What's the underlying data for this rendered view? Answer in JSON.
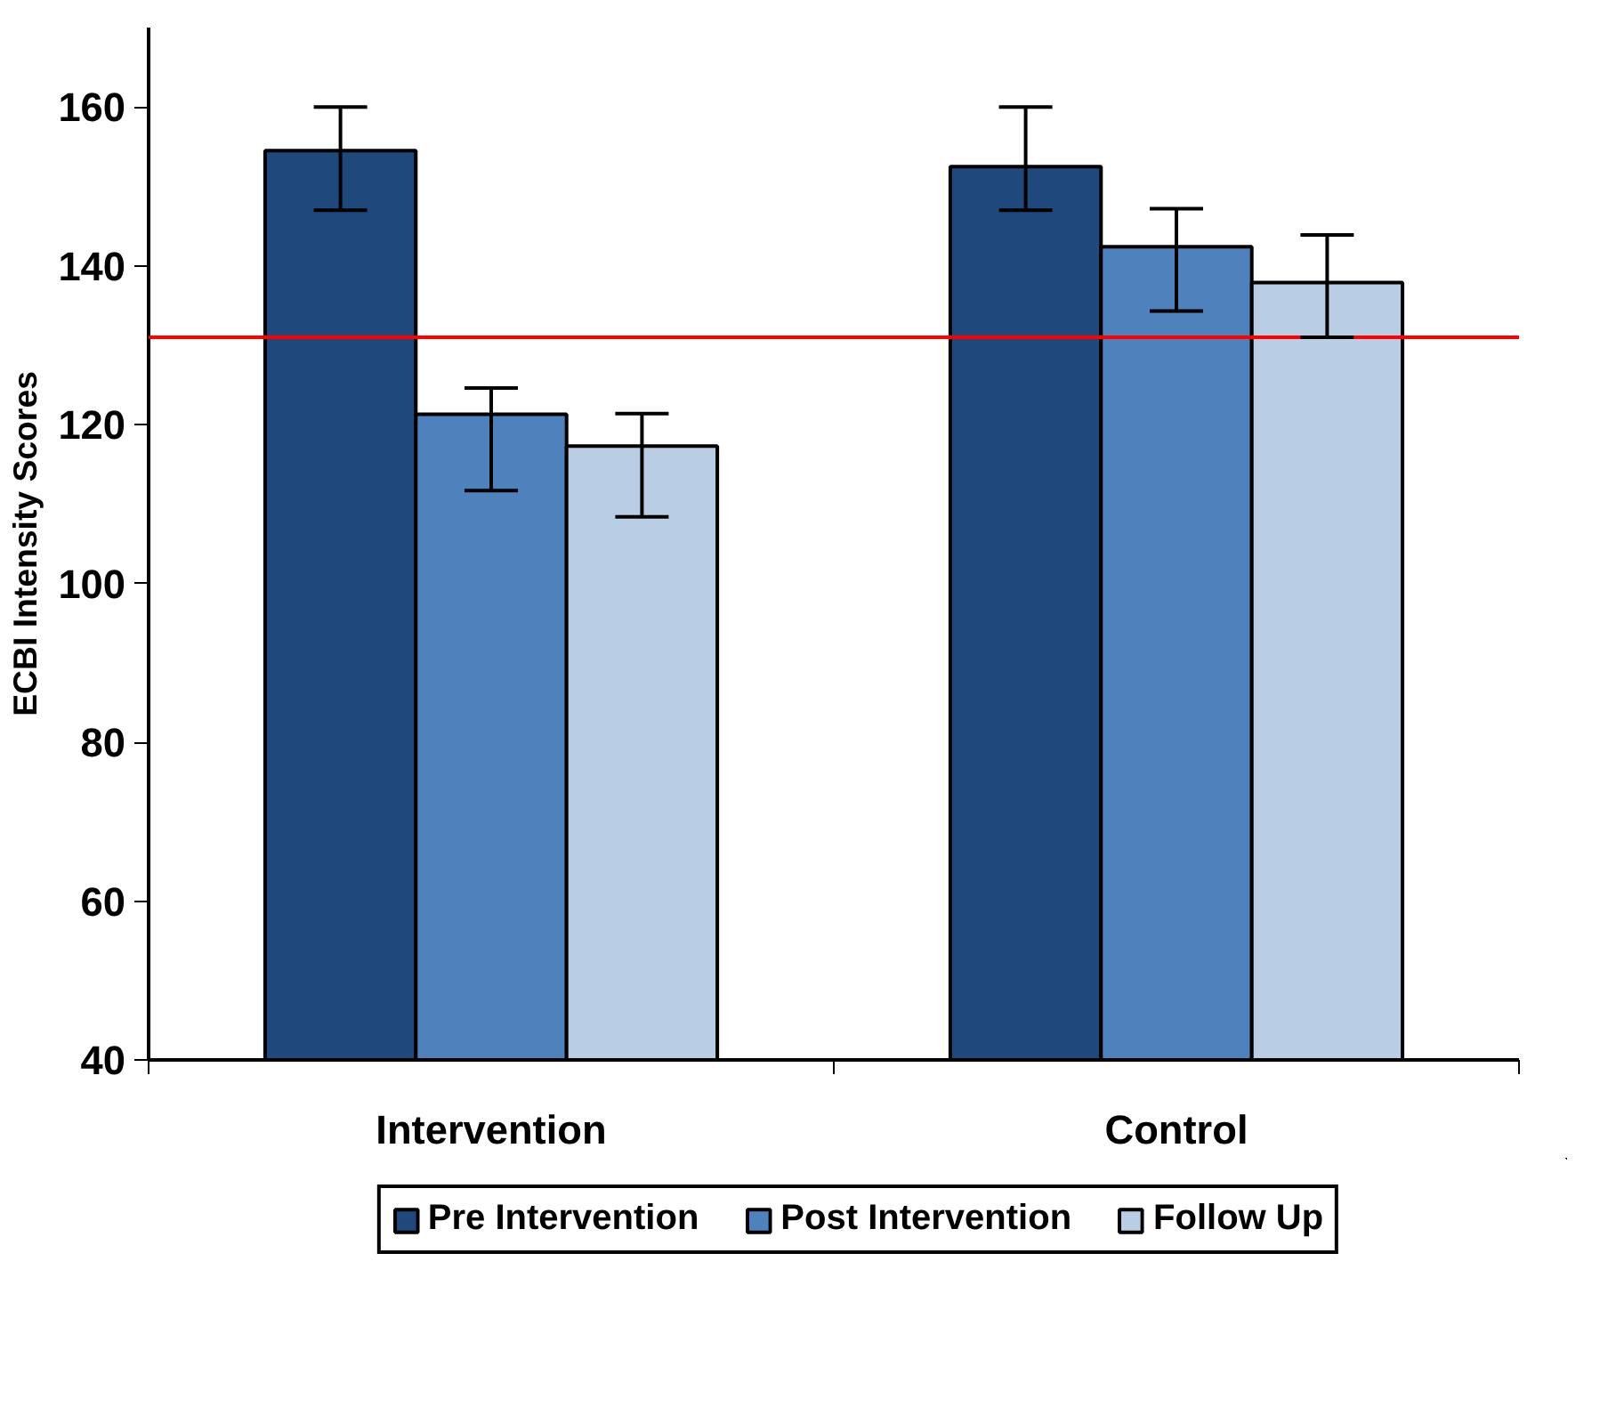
{
  "chart_data": {
    "type": "bar",
    "ylabel": "ECBI Intensity Scores",
    "categories": [
      "Intervention",
      "Control"
    ],
    "series": [
      {
        "name": "Pre Intervention",
        "color": "#1f497d",
        "values": [
          154.5,
          152.5
        ],
        "errors": [
          [
            147,
            160
          ],
          [
            147,
            160
          ]
        ]
      },
      {
        "name": "Post Intervention",
        "color": "#4f81bd",
        "values": [
          121.3,
          142.4
        ],
        "errors": [
          [
            111.7,
            124.6
          ],
          [
            134.3,
            147.2
          ]
        ]
      },
      {
        "name": "Follow Up",
        "color": "#b9cde5",
        "values": [
          117.3,
          137.9
        ],
        "errors": [
          [
            108.4,
            121.4
          ],
          [
            131,
            143.9
          ]
        ]
      }
    ],
    "ylim": [
      40,
      170
    ],
    "yticks": [
      40,
      60,
      80,
      100,
      120,
      140,
      160
    ],
    "grid": false,
    "legend": "bottom",
    "ref_lines": [
      {
        "axis": "y",
        "value": 131,
        "color": "#ff0000"
      }
    ]
  }
}
